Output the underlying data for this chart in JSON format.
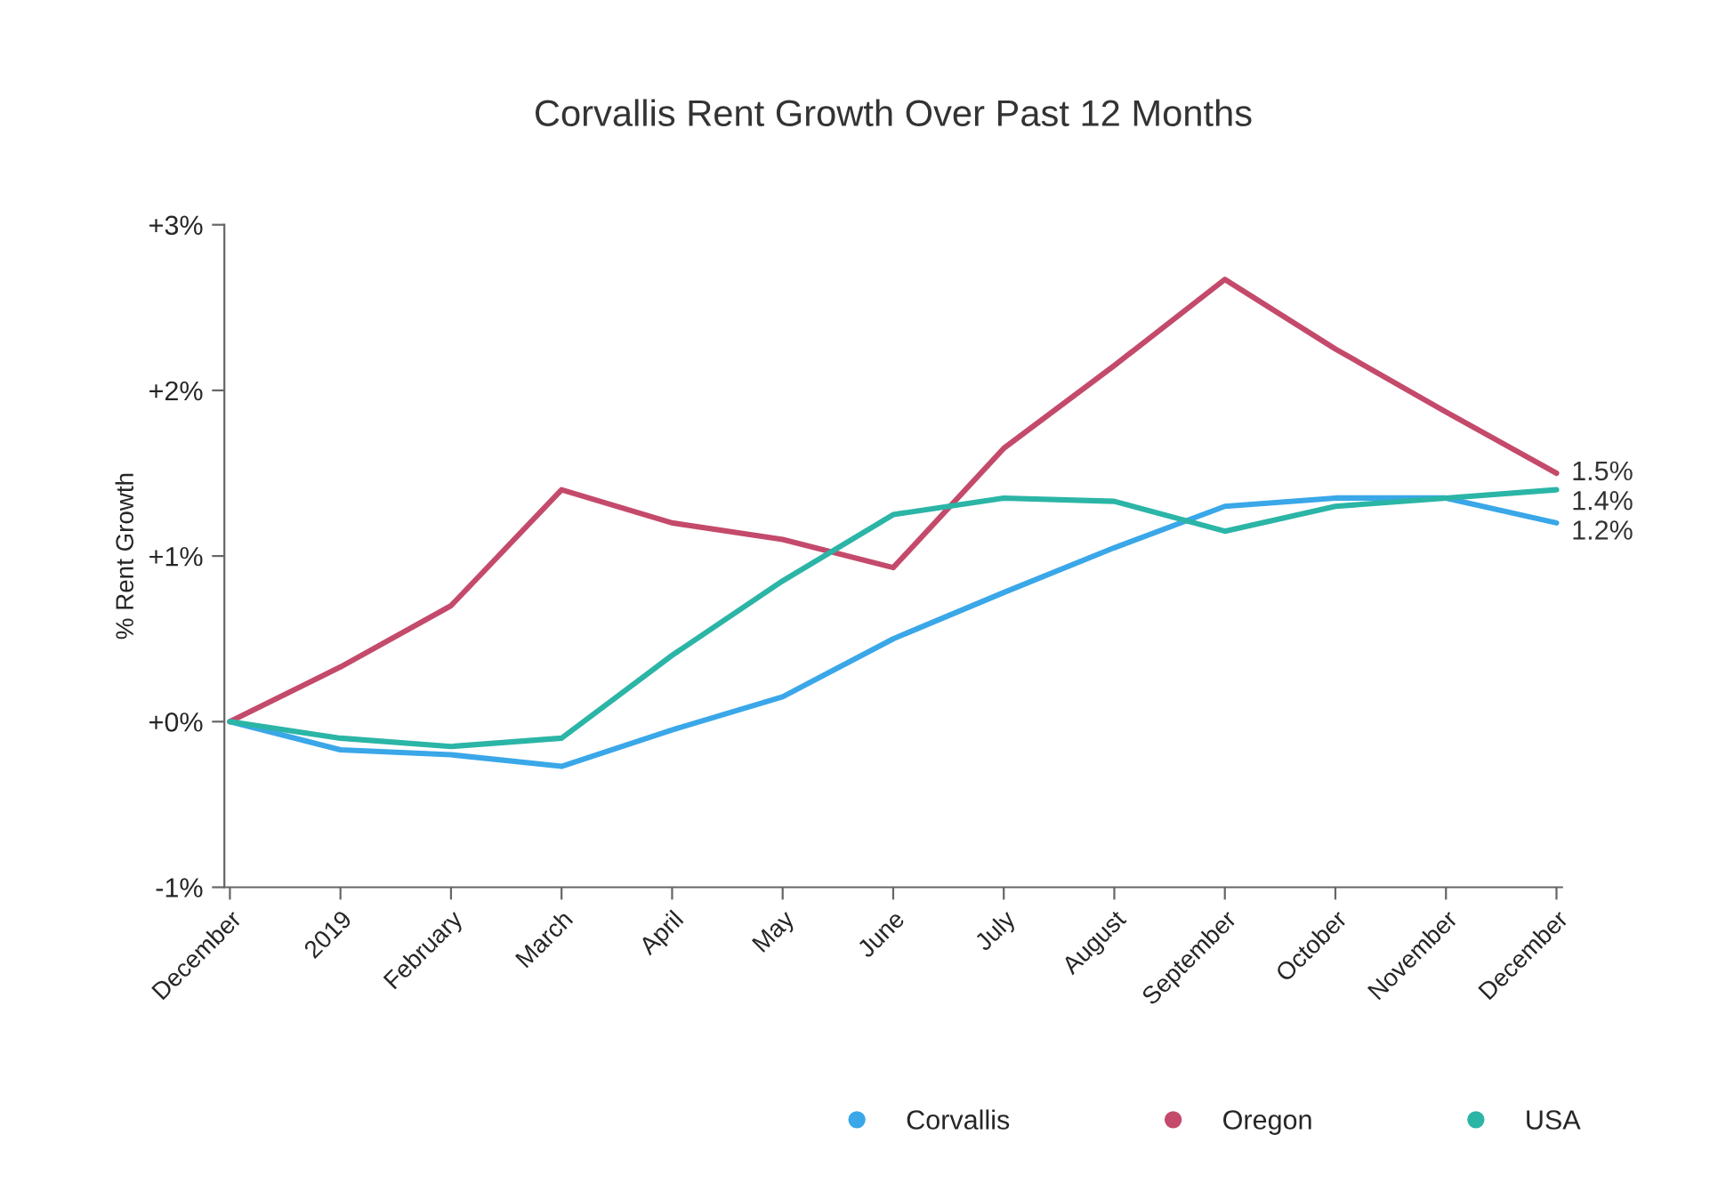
{
  "chart_data": {
    "type": "line",
    "title": "Corvallis Rent Growth Over Past 12 Months",
    "ylabel": "% Rent Growth",
    "categories": [
      "December",
      "2019",
      "February",
      "March",
      "April",
      "May",
      "June",
      "July",
      "August",
      "September",
      "October",
      "November",
      "December"
    ],
    "series": [
      {
        "name": "Corvallis",
        "color": "#3aa7e8",
        "values": [
          0,
          -0.17,
          -0.2,
          -0.27,
          -0.05,
          0.15,
          0.5,
          0.78,
          1.05,
          1.3,
          1.35,
          1.35,
          1.2
        ],
        "value_labels": [
          null,
          null,
          null,
          null,
          null,
          null,
          null,
          null,
          null,
          null,
          null,
          null,
          "1.2%"
        ]
      },
      {
        "name": "Oregon",
        "color": "#c44a6b",
        "values": [
          0,
          0.33,
          0.7,
          1.4,
          1.2,
          1.1,
          0.93,
          1.65,
          2.15,
          2.67,
          2.25,
          1.87,
          1.5
        ],
        "value_labels": [
          null,
          null,
          null,
          null,
          null,
          null,
          null,
          null,
          null,
          null,
          null,
          null,
          "1.5%"
        ]
      },
      {
        "name": "USA",
        "color": "#2bb5a6",
        "values": [
          0,
          -0.1,
          -0.15,
          -0.1,
          0.4,
          0.85,
          1.25,
          1.35,
          1.33,
          1.15,
          1.3,
          1.35,
          1.4
        ],
        "value_labels": [
          null,
          null,
          null,
          null,
          null,
          null,
          null,
          null,
          null,
          null,
          null,
          null,
          "1.4%"
        ]
      }
    ],
    "ylim": [
      -1,
      3
    ],
    "yticks": [
      {
        "value": -1,
        "label": "-1%"
      },
      {
        "value": 0,
        "label": "+0%"
      },
      {
        "value": 1,
        "label": "+1%"
      },
      {
        "value": 2,
        "label": "+2%"
      },
      {
        "value": 3,
        "label": "+3%"
      }
    ],
    "grid": false,
    "legend": "bottom"
  }
}
